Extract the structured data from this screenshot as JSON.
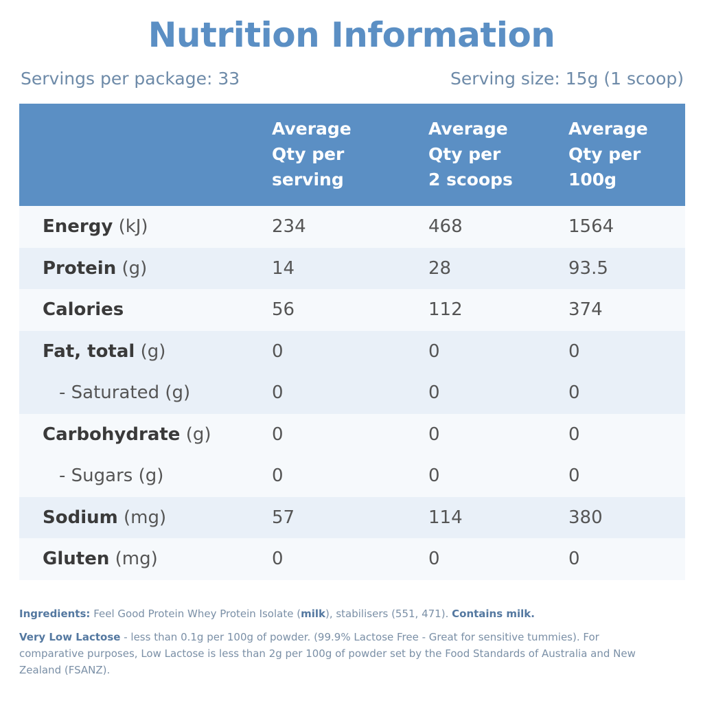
{
  "title": "Nutrition Information",
  "servings_per_package": "Servings per package: 33",
  "serving_size": "Serving size: 15g (1 scoop)",
  "columns": [
    {
      "line1": "Average",
      "line2": "Qty per",
      "line3": "serving"
    },
    {
      "line1": "Average",
      "line2": "Qty per",
      "line3": "2 scoops"
    },
    {
      "line1": "Average",
      "line2": "Qty per",
      "line3": "100g"
    }
  ],
  "rows": [
    {
      "name": "Energy",
      "unit": "(kJ)",
      "v1": "234",
      "v2": "468",
      "v3": "1564"
    },
    {
      "name": "Protein",
      "unit": "(g)",
      "v1": "14",
      "v2": "28",
      "v3": "93.5"
    },
    {
      "name": "Calories",
      "unit": "",
      "v1": "56",
      "v2": "112",
      "v3": "374"
    },
    {
      "name": "Fat, total",
      "unit": "(g)",
      "v1": "0",
      "v2": "0",
      "v3": "0"
    },
    {
      "name": "- Saturated",
      "unit": "(g)",
      "v1": "0",
      "v2": "0",
      "v3": "0"
    },
    {
      "name": "Carbohydrate",
      "unit": "(g)",
      "v1": "0",
      "v2": "0",
      "v3": "0"
    },
    {
      "name": "- Sugars",
      "unit": "(g)",
      "v1": "0",
      "v2": "0",
      "v3": "0"
    },
    {
      "name": "Sodium",
      "unit": "(mg)",
      "v1": "57",
      "v2": "114",
      "v3": "380"
    },
    {
      "name": "Gluten",
      "unit": "(mg)",
      "v1": "0",
      "v2": "0",
      "v3": "0"
    }
  ],
  "notes": {
    "ingredients_label": "Ingredients:",
    "ingredients_text1": "Feel Good Protein Whey Protein Isolate (",
    "ingredients_milk": "milk",
    "ingredients_text2": "), stabilisers (551, 471).",
    "contains": "Contains milk.",
    "lactose_label": "Very Low Lactose",
    "lactose_text": "- less than 0.1g per 100g of powder. (99.9% Lactose Free - Great for sensitive tummies). For comparative purposes, Low Lactose is less than 2g per 100g of powder set by the Food Standards of Australia and New Zealand (FSANZ)."
  },
  "colors": {
    "accent": "#5b8fc4",
    "row_alt": "#e9f0f8",
    "row_plain": "#f6f9fc"
  }
}
